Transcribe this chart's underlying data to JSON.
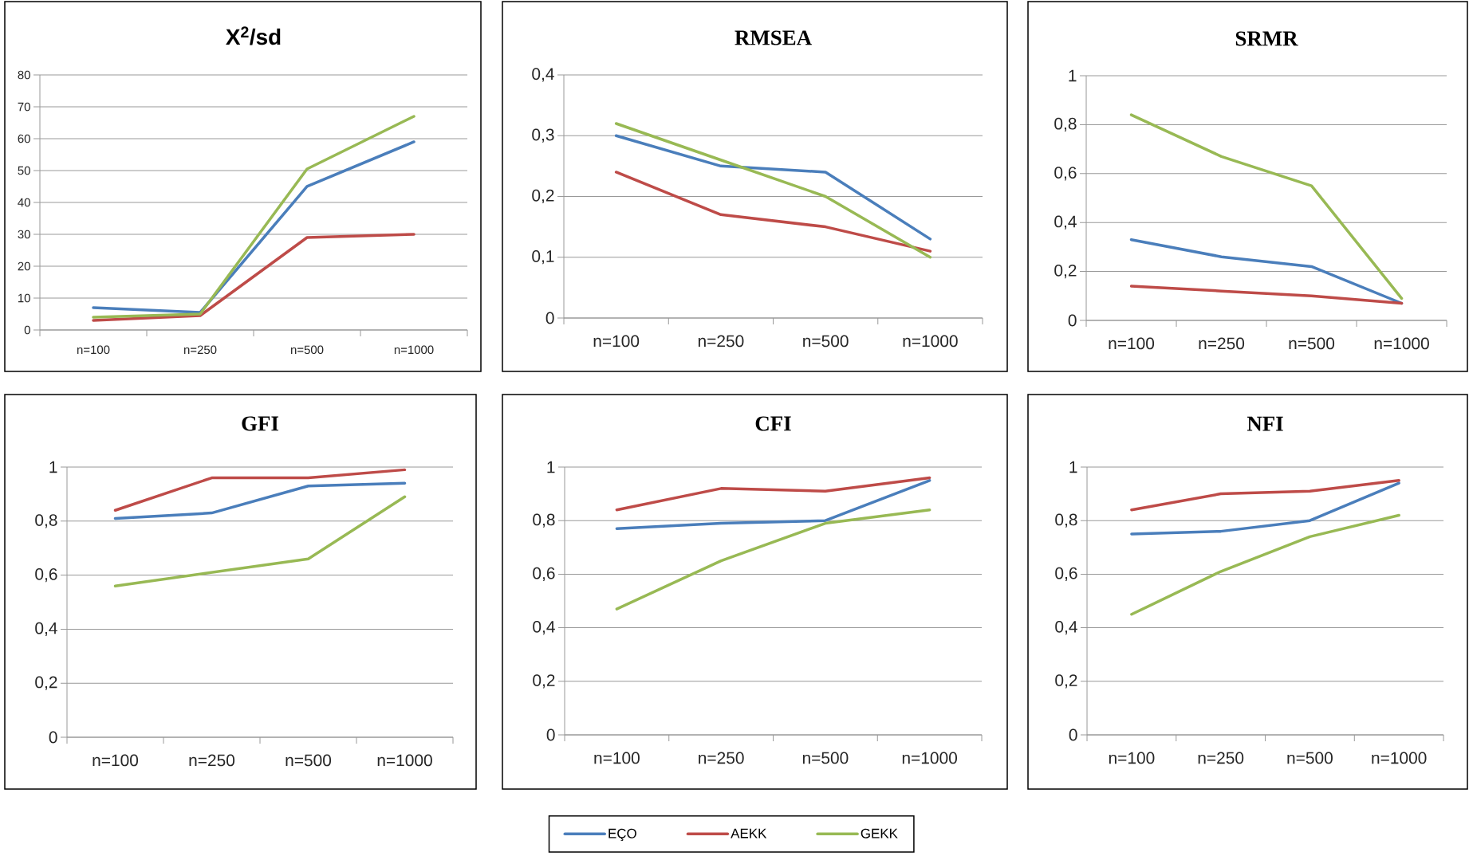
{
  "chart_data": [
    {
      "type": "line",
      "title": "X$^{2}$/sd",
      "categories": [
        "n=100",
        "n=250",
        "n=500",
        "n=1000"
      ],
      "ylim": [
        0,
        80
      ],
      "yticks": [
        0,
        10,
        20,
        30,
        40,
        50,
        60,
        70,
        80
      ],
      "grid": "y",
      "series": [
        {
          "color": "#4a7ebb",
          "values": [
            7,
            5.5,
            45,
            59
          ]
        },
        {
          "color": "#be4b48",
          "values": [
            3,
            4.5,
            29,
            30
          ]
        },
        {
          "color": "#98b954",
          "values": [
            4,
            5,
            50.5,
            67
          ]
        }
      ]
    },
    {
      "type": "line",
      "title": "RMSEA",
      "categories": [
        "n=100",
        "n=250",
        "n=500",
        "n=1000"
      ],
      "ylim": [
        0,
        0.4
      ],
      "yticks": [
        0,
        {
          "value": 0.1,
          "label": "0,1"
        },
        {
          "value": 0.2,
          "label": "0,2"
        },
        {
          "value": 0.3,
          "label": "0,3"
        },
        {
          "value": 0.4,
          "label": "0,4"
        }
      ],
      "grid": "y",
      "series": [
        {
          "color": "#4a7ebb",
          "values": [
            0.3,
            0.25,
            0.24,
            0.13
          ]
        },
        {
          "color": "#be4b48",
          "values": [
            0.24,
            0.17,
            0.15,
            0.11
          ]
        },
        {
          "color": "#98b954",
          "values": [
            0.32,
            0.26,
            0.2,
            0.1
          ]
        }
      ]
    },
    {
      "type": "line",
      "title": "SRMR",
      "categories": [
        "n=100",
        "n=250",
        "n=500",
        "n=1000"
      ],
      "ylim": [
        0,
        1
      ],
      "yticks": [
        0,
        {
          "value": 0.2,
          "label": "0,2"
        },
        {
          "value": 0.4,
          "label": "0,4"
        },
        {
          "value": 0.6,
          "label": "0,6"
        },
        {
          "value": 0.8,
          "label": "0,8"
        },
        1
      ],
      "grid": "y",
      "series": [
        {
          "color": "#4a7ebb",
          "values": [
            0.33,
            0.26,
            0.22,
            0.07
          ]
        },
        {
          "color": "#be4b48",
          "values": [
            0.14,
            0.12,
            0.1,
            0.07
          ]
        },
        {
          "color": "#98b954",
          "values": [
            0.84,
            0.67,
            0.55,
            0.09
          ]
        }
      ]
    },
    {
      "type": "line",
      "title": "GFI",
      "categories": [
        "n=100",
        "n=250",
        "n=500",
        "n=1000"
      ],
      "ylim": [
        0,
        1
      ],
      "yticks": [
        0,
        {
          "value": 0.2,
          "label": "0,2"
        },
        {
          "value": 0.4,
          "label": "0,4"
        },
        {
          "value": 0.6,
          "label": "0,6"
        },
        {
          "value": 0.8,
          "label": "0,8"
        },
        1
      ],
      "grid": "y",
      "series": [
        {
          "color": "#4a7ebb",
          "values": [
            0.81,
            0.83,
            0.93,
            0.94
          ]
        },
        {
          "color": "#be4b48",
          "values": [
            0.84,
            0.96,
            0.96,
            0.99
          ]
        },
        {
          "color": "#98b954",
          "values": [
            0.56,
            0.61,
            0.66,
            0.89
          ]
        }
      ]
    },
    {
      "type": "line",
      "title": "CFI",
      "categories": [
        "n=100",
        "n=250",
        "n=500",
        "n=1000"
      ],
      "ylim": [
        0,
        1
      ],
      "yticks": [
        0,
        {
          "value": 0.2,
          "label": "0,2"
        },
        {
          "value": 0.4,
          "label": "0,4"
        },
        {
          "value": 0.6,
          "label": "0,6"
        },
        {
          "value": 0.8,
          "label": "0,8"
        },
        1
      ],
      "grid": "y",
      "legend": "bottom",
      "series": [
        {
          "name": "EÇO",
          "color": "#4a7ebb",
          "values": [
            0.77,
            0.79,
            0.8,
            0.95
          ]
        },
        {
          "name": "AEKK",
          "color": "#be4b48",
          "values": [
            0.84,
            0.92,
            0.91,
            0.96
          ]
        },
        {
          "name": "GEKK",
          "color": "#98b954",
          "values": [
            0.47,
            0.65,
            0.79,
            0.84
          ]
        }
      ]
    },
    {
      "type": "line",
      "title": "NFI",
      "categories": [
        "n=100",
        "n=250",
        "n=500",
        "n=1000"
      ],
      "ylim": [
        0,
        1
      ],
      "yticks": [
        0,
        {
          "value": 0.2,
          "label": "0,2"
        },
        {
          "value": 0.4,
          "label": "0,4"
        },
        {
          "value": 0.6,
          "label": "0,6"
        },
        {
          "value": 0.8,
          "label": "0,8"
        },
        1
      ],
      "grid": "y",
      "series": [
        {
          "color": "#4a7ebb",
          "values": [
            0.75,
            0.76,
            0.8,
            0.94
          ]
        },
        {
          "color": "#be4b48",
          "values": [
            0.84,
            0.9,
            0.91,
            0.95
          ]
        },
        {
          "color": "#98b954",
          "values": [
            0.45,
            0.61,
            0.74,
            0.82
          ]
        }
      ]
    }
  ]
}
